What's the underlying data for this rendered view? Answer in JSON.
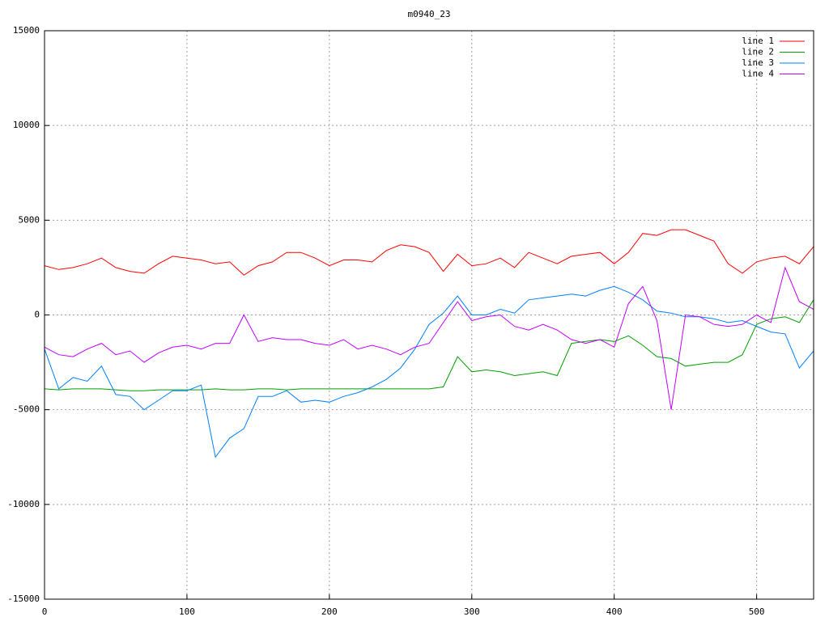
{
  "chart_data": {
    "type": "line",
    "title": "m0940_23",
    "x": [
      0,
      10,
      20,
      30,
      40,
      50,
      60,
      70,
      80,
      90,
      100,
      110,
      120,
      130,
      140,
      150,
      160,
      170,
      180,
      190,
      200,
      210,
      220,
      230,
      240,
      250,
      260,
      270,
      280,
      290,
      300,
      310,
      320,
      330,
      340,
      350,
      360,
      370,
      380,
      390,
      400,
      410,
      420,
      430,
      440,
      450,
      460,
      470,
      480,
      490,
      500,
      510,
      520,
      530,
      540
    ],
    "series": [
      {
        "name": "line 1",
        "color": "#ff0000",
        "values": [
          2600,
          2400,
          2500,
          2700,
          3000,
          2500,
          2300,
          2200,
          2700,
          3100,
          3000,
          2900,
          2700,
          2800,
          2100,
          2600,
          2800,
          3300,
          3300,
          3000,
          2600,
          2900,
          2900,
          2800,
          3400,
          3700,
          3600,
          3300,
          2300,
          3200,
          2600,
          2700,
          3000,
          2500,
          3300,
          3000,
          2700,
          3100,
          3200,
          3300,
          2700,
          3300,
          4300,
          4200,
          4500,
          4500,
          4200,
          3900,
          2700,
          2200,
          2800,
          3000,
          3100,
          2700,
          3600
        ]
      },
      {
        "name": "line 2",
        "color": "#00a000",
        "values": [
          -3900,
          -3950,
          -3900,
          -3900,
          -3900,
          -3950,
          -4000,
          -4000,
          -3950,
          -3950,
          -3950,
          -3950,
          -3900,
          -3950,
          -3950,
          -3900,
          -3900,
          -3950,
          -3900,
          -3900,
          -3900,
          -3900,
          -3900,
          -3900,
          -3900,
          -3900,
          -3900,
          -3900,
          -3800,
          -2200,
          -3000,
          -2900,
          -3000,
          -3200,
          -3100,
          -3000,
          -3200,
          -1500,
          -1400,
          -1300,
          -1400,
          -1100,
          -1600,
          -2200,
          -2300,
          -2700,
          -2600,
          -2500,
          -2500,
          -2100,
          -500,
          -200,
          -100,
          -400,
          800
        ]
      },
      {
        "name": "line 3",
        "color": "#0080ff",
        "values": [
          -1800,
          -3900,
          -3300,
          -3500,
          -2700,
          -4200,
          -4300,
          -5000,
          -4500,
          -4000,
          -4000,
          -3700,
          -7500,
          -6500,
          -6000,
          -4300,
          -4300,
          -4000,
          -4600,
          -4500,
          -4600,
          -4300,
          -4100,
          -3800,
          -3400,
          -2800,
          -1800,
          -500,
          100,
          1000,
          0,
          0,
          300,
          100,
          800,
          900,
          1000,
          1100,
          1000,
          1300,
          1500,
          1200,
          800,
          200,
          100,
          -100,
          -100,
          -200,
          -400,
          -300,
          -600,
          -900,
          -1000,
          -2800,
          -1900
        ]
      },
      {
        "name": "line 4",
        "color": "#c000ff",
        "values": [
          -1700,
          -2100,
          -2200,
          -1800,
          -1500,
          -2100,
          -1900,
          -2500,
          -2000,
          -1700,
          -1600,
          -1800,
          -1500,
          -1500,
          0,
          -1400,
          -1200,
          -1300,
          -1300,
          -1500,
          -1600,
          -1300,
          -1800,
          -1600,
          -1800,
          -2100,
          -1700,
          -1500,
          -400,
          700,
          -300,
          -100,
          0,
          -600,
          -800,
          -500,
          -800,
          -1300,
          -1500,
          -1300,
          -1700,
          600,
          1500,
          -300,
          -5000,
          0,
          -100,
          -500,
          -600,
          -500,
          0,
          -400,
          2500,
          700,
          300
        ]
      }
    ],
    "xlim": [
      0,
      540
    ],
    "xticks": [
      0,
      100,
      200,
      300,
      400,
      500
    ],
    "ylim": [
      -15000,
      15000
    ],
    "yticks": [
      -15000,
      -10000,
      -5000,
      0,
      5000,
      10000,
      15000
    ],
    "grid": true
  }
}
